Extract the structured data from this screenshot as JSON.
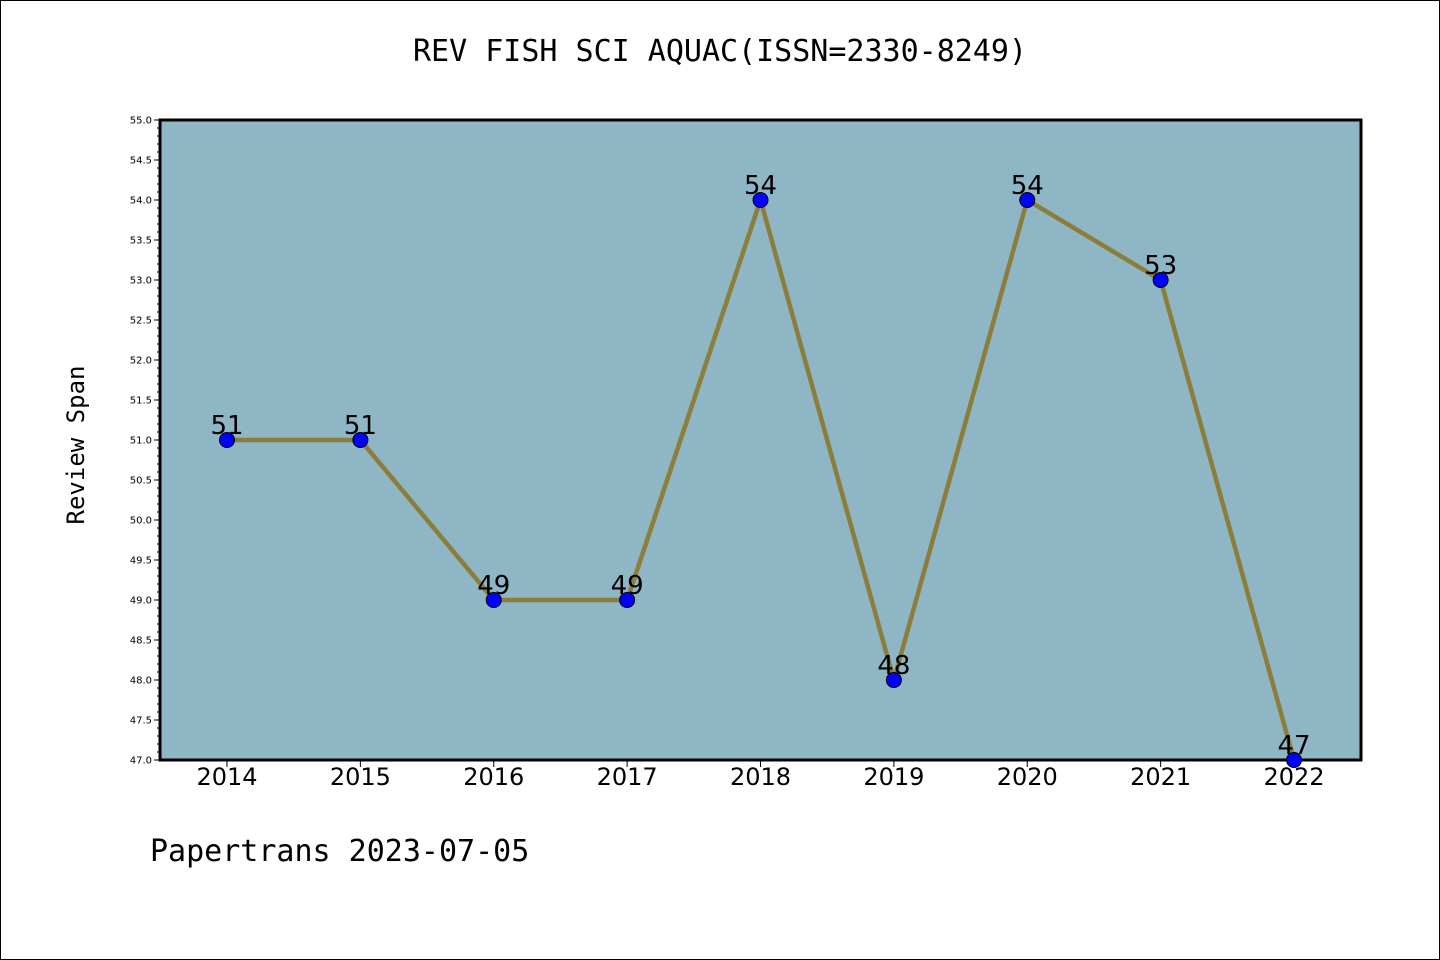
{
  "chart_data": {
    "type": "line",
    "title": "REV FISH SCI AQUAC(ISSN=2330-8249)",
    "xlabel": "",
    "ylabel": "Review Span",
    "categories": [
      "2014",
      "2015",
      "2016",
      "2017",
      "2018",
      "2019",
      "2020",
      "2021",
      "2022"
    ],
    "series": [
      {
        "values": [
          51,
          51,
          49,
          49,
          54,
          48,
          54,
          53,
          47
        ]
      }
    ],
    "data_labels": [
      "51",
      "51",
      "49",
      "49",
      "54",
      "48",
      "54",
      "53",
      "47"
    ],
    "ylim": [
      47.0,
      55.0
    ],
    "yticks": [
      "47.0",
      "47.5",
      "48.0",
      "48.5",
      "49.0",
      "49.5",
      "50.0",
      "50.5",
      "51.0",
      "51.5",
      "52.0",
      "52.5",
      "53.0",
      "53.5",
      "54.0",
      "54.5",
      "55.0"
    ],
    "grid": false,
    "colors": {
      "plot_background": "#8fb6c4",
      "line": "#8b7e3a",
      "marker": "#0000ff"
    }
  },
  "footer": {
    "text": "Papertrans 2023-07-05"
  }
}
